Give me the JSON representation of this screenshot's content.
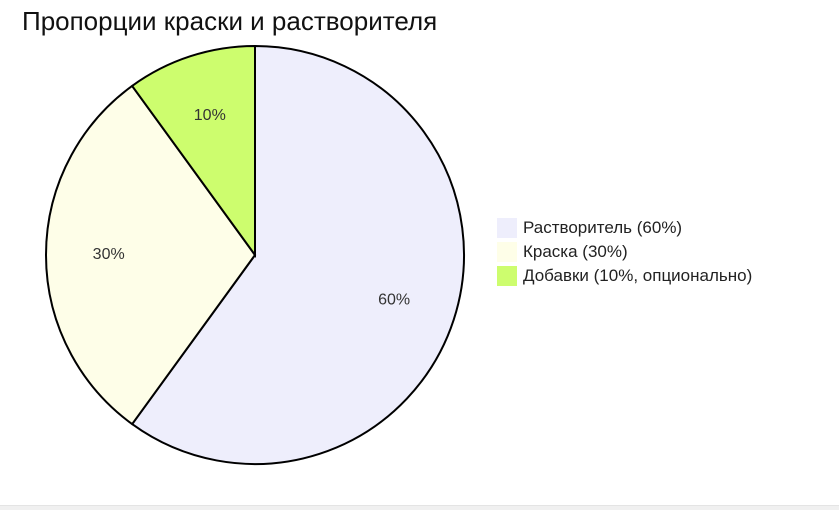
{
  "chart_data": {
    "type": "pie",
    "title": "Пропорции краски и растворителя",
    "slices": [
      {
        "label": "Растворитель (60%)",
        "value": 60,
        "value_label": "60%",
        "color": "#eeeefc"
      },
      {
        "label": "Краска (30%)",
        "value": 30,
        "value_label": "30%",
        "color": "#fefee8"
      },
      {
        "label": "Добавки (10%, опционально)",
        "value": 10,
        "value_label": "10%",
        "color": "#cdfd6e"
      }
    ],
    "start": "top, clockwise",
    "legend_position": "right"
  }
}
